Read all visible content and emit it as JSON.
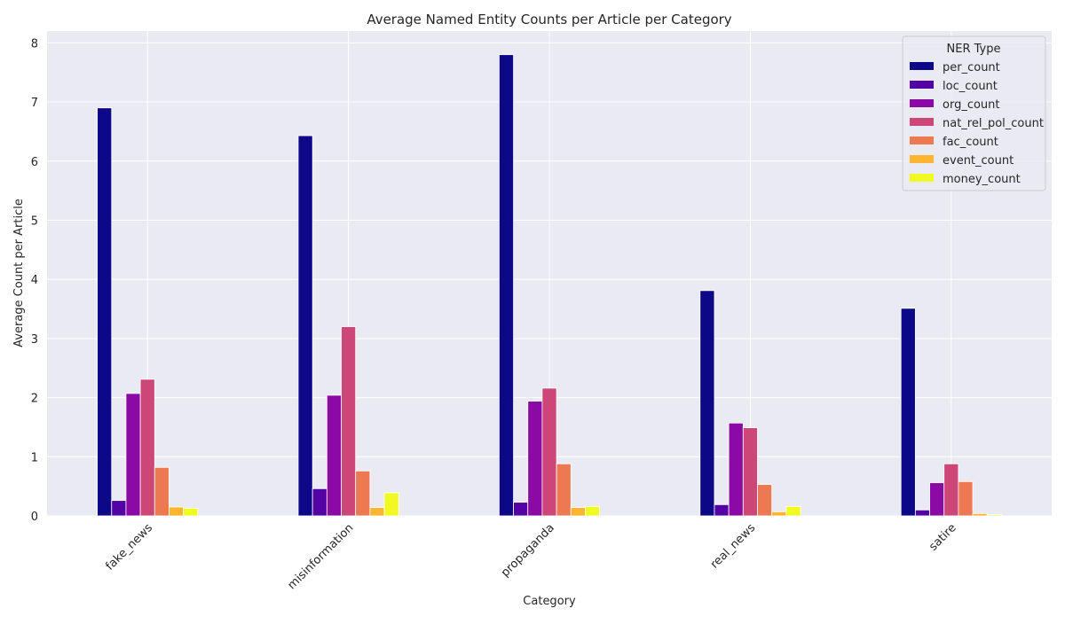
{
  "chart_data": {
    "type": "bar",
    "title": "Average Named Entity Counts per Article per Category",
    "xlabel": "Category",
    "ylabel": "Average Count per Article",
    "categories": [
      "fake_news",
      "misinformation",
      "propaganda",
      "real_news",
      "satire"
    ],
    "ylim": [
      0,
      8.2
    ],
    "yticks": [
      0,
      1,
      2,
      3,
      4,
      5,
      6,
      7,
      8
    ],
    "grid": true,
    "legend": {
      "title": "NER Type",
      "position": "top-right"
    },
    "series": [
      {
        "name": "per_count",
        "color": "#0d0887",
        "values": [
          6.9,
          6.43,
          7.8,
          3.81,
          3.51
        ]
      },
      {
        "name": "loc_count",
        "color": "#5302a3",
        "values": [
          0.26,
          0.46,
          0.23,
          0.19,
          0.1
        ]
      },
      {
        "name": "org_count",
        "color": "#8b0aa5",
        "values": [
          2.07,
          2.04,
          1.94,
          1.57,
          0.56
        ]
      },
      {
        "name": "nat_rel_pol_count",
        "color": "#cc4778",
        "values": [
          2.31,
          3.2,
          2.16,
          1.49,
          0.88
        ]
      },
      {
        "name": "fac_count",
        "color": "#ed7953",
        "values": [
          0.82,
          0.76,
          0.88,
          0.53,
          0.58
        ]
      },
      {
        "name": "event_count",
        "color": "#fdb42f",
        "values": [
          0.15,
          0.14,
          0.14,
          0.07,
          0.04
        ]
      },
      {
        "name": "money_count",
        "color": "#f0f921",
        "values": [
          0.13,
          0.39,
          0.16,
          0.16,
          0.02
        ]
      }
    ]
  }
}
